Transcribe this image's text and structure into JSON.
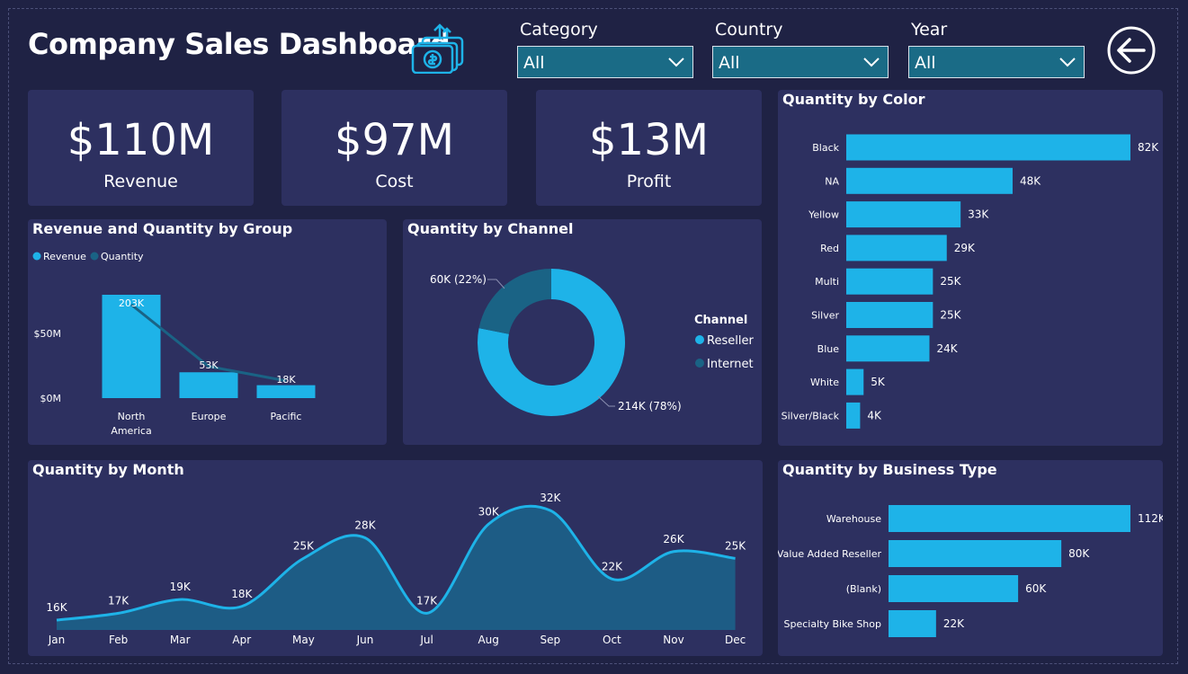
{
  "header": {
    "title": "Company Sales Dashboard",
    "logo_icon": "money-upload-icon"
  },
  "slicers": [
    {
      "label": "Category",
      "value": "All"
    },
    {
      "label": "Country",
      "value": "All"
    },
    {
      "label": "Year",
      "value": "All"
    }
  ],
  "back_icon": "back-arrow-icon",
  "kpis": [
    {
      "value": "$110M",
      "label": "Revenue"
    },
    {
      "value": "$97M",
      "label": "Cost"
    },
    {
      "value": "$13M",
      "label": "Profit"
    }
  ],
  "panels": {
    "group": {
      "title": "Revenue and Quantity by Group",
      "legend": [
        "Revenue",
        "Quantity"
      ]
    },
    "channel": {
      "title": "Quantity by Channel",
      "legend_title": "Channel"
    },
    "color": {
      "title": "Quantity by Color"
    },
    "month": {
      "title": "Quantity by Month"
    },
    "business": {
      "title": "Quantity by Business Type"
    }
  },
  "colors": {
    "accent": "#1eb3e8",
    "dark_series": "#1a6385",
    "panel": "#2d3060",
    "background": "#1f2244"
  },
  "chart_data": [
    {
      "type": "bar",
      "id": "group",
      "title": "Revenue and Quantity by Group",
      "categories": [
        "North America",
        "Europe",
        "Pacific"
      ],
      "series": [
        {
          "name": "Revenue",
          "type": "bar",
          "values": [
            80,
            20,
            10
          ]
        },
        {
          "name": "Quantity",
          "type": "line",
          "values": [
            203,
            53,
            18
          ],
          "labels": [
            "203K",
            "53K",
            "18K"
          ]
        }
      ],
      "y_ticks": [
        "$0M",
        "$50M"
      ],
      "legend": "top-left"
    },
    {
      "type": "pie",
      "id": "channel",
      "title": "Quantity by Channel",
      "legend_title": "Channel",
      "slices": [
        {
          "name": "Reseller",
          "value": 214,
          "label": "214K (78%)"
        },
        {
          "name": "Internet",
          "value": 60,
          "label": "60K (22%)"
        }
      ],
      "legend": "right"
    },
    {
      "type": "bar",
      "id": "color",
      "orientation": "horizontal",
      "title": "Quantity by Color",
      "categories": [
        "Black",
        "NA",
        "Yellow",
        "Red",
        "Multi",
        "Silver",
        "Blue",
        "White",
        "Silver/Black"
      ],
      "values": [
        82,
        48,
        33,
        29,
        25,
        25,
        24,
        5,
        4
      ],
      "labels": [
        "82K",
        "48K",
        "33K",
        "29K",
        "25K",
        "25K",
        "24K",
        "5K",
        "4K"
      ]
    },
    {
      "type": "area",
      "id": "month",
      "title": "Quantity by Month",
      "categories": [
        "Jan",
        "Feb",
        "Mar",
        "Apr",
        "May",
        "Jun",
        "Jul",
        "Aug",
        "Sep",
        "Oct",
        "Nov",
        "Dec"
      ],
      "values": [
        16,
        17,
        19,
        18,
        25,
        28,
        17,
        30,
        32,
        22,
        26,
        25
      ],
      "labels": [
        "16K",
        "17K",
        "19K",
        "18K",
        "25K",
        "28K",
        "17K",
        "30K",
        "32K",
        "22K",
        "26K",
        "25K"
      ]
    },
    {
      "type": "bar",
      "id": "business",
      "orientation": "horizontal",
      "title": "Quantity by Business Type",
      "categories": [
        "Warehouse",
        "Value Added Reseller",
        "(Blank)",
        "Specialty Bike Shop"
      ],
      "values": [
        112,
        80,
        60,
        22
      ],
      "labels": [
        "112K",
        "80K",
        "60K",
        "22K"
      ]
    }
  ]
}
